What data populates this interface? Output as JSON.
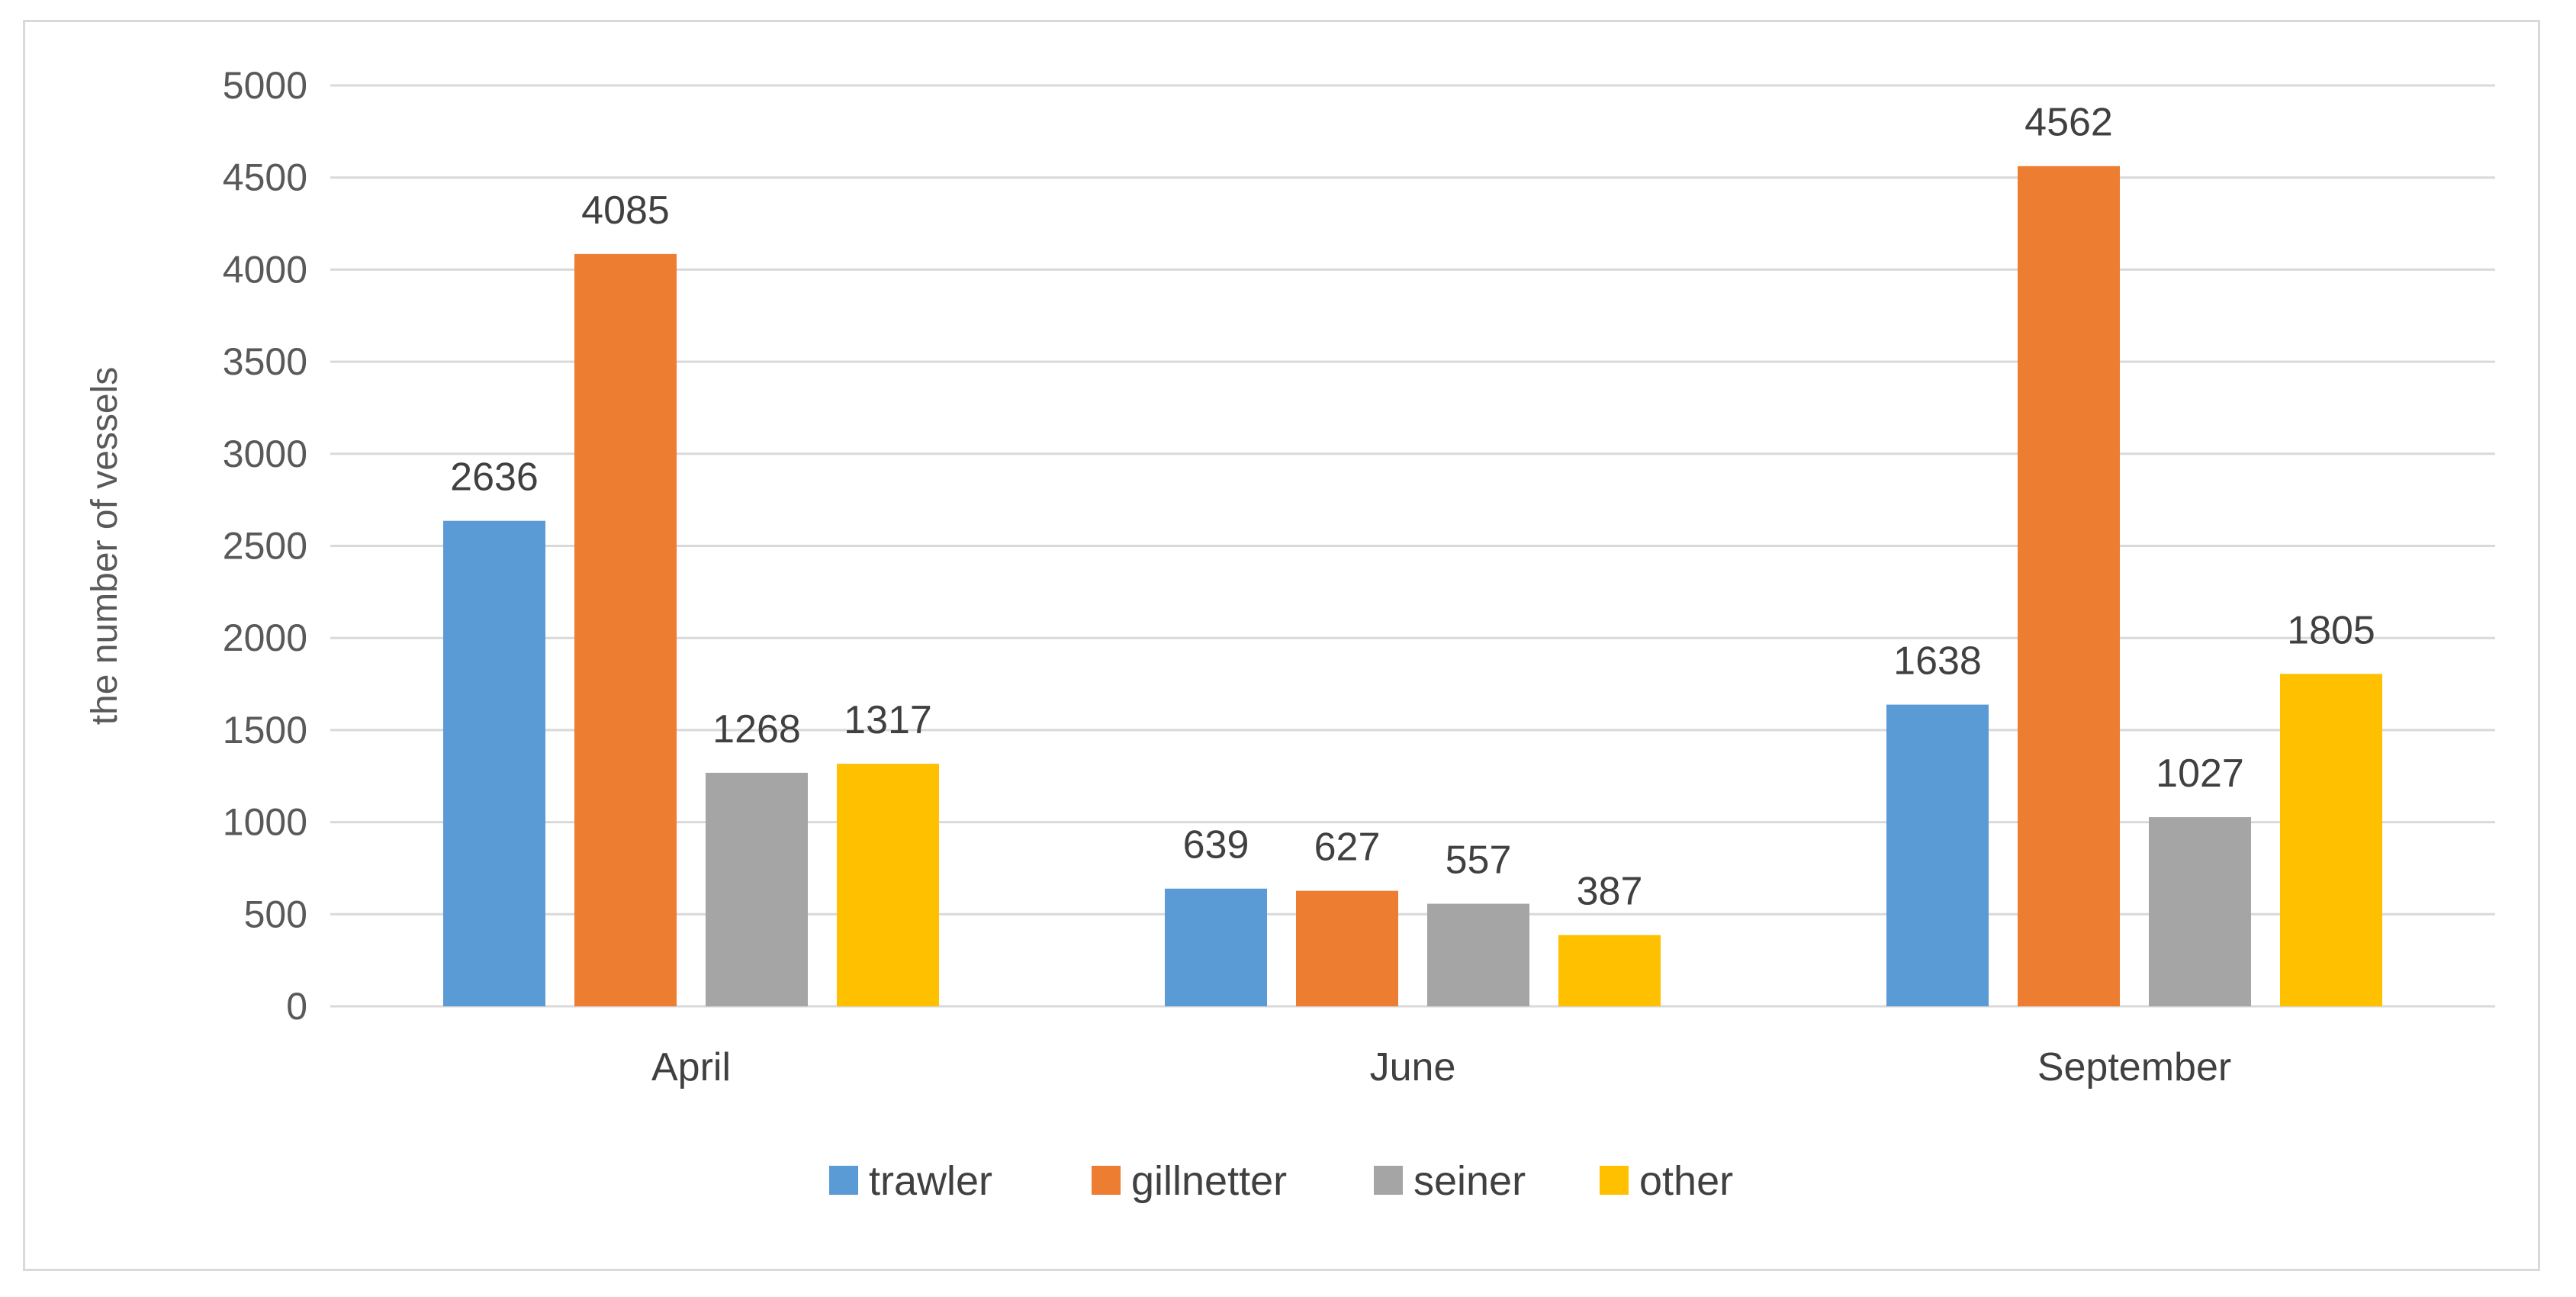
{
  "chart_data": {
    "type": "bar",
    "title": "",
    "xlabel": "",
    "ylabel": "the number of vessels",
    "categories": [
      "April",
      "June",
      "September"
    ],
    "series": [
      {
        "name": "trawler",
        "color": "#5b9bd5",
        "values": [
          2636,
          639,
          1638
        ]
      },
      {
        "name": "gillnetter",
        "color": "#ed7d31",
        "values": [
          4085,
          627,
          4562
        ]
      },
      {
        "name": "seiner",
        "color": "#a5a5a5",
        "values": [
          1268,
          557,
          1027
        ]
      },
      {
        "name": "other",
        "color": "#ffc000",
        "values": [
          1317,
          387,
          1805
        ]
      }
    ],
    "ylim": [
      0,
      5000
    ],
    "yticks": [
      "0",
      "500",
      "1000",
      "1500",
      "2000",
      "2500",
      "3000",
      "3500",
      "4000",
      "4500",
      "5000"
    ],
    "grid": true,
    "data_labels": true,
    "legend_position": "bottom"
  }
}
